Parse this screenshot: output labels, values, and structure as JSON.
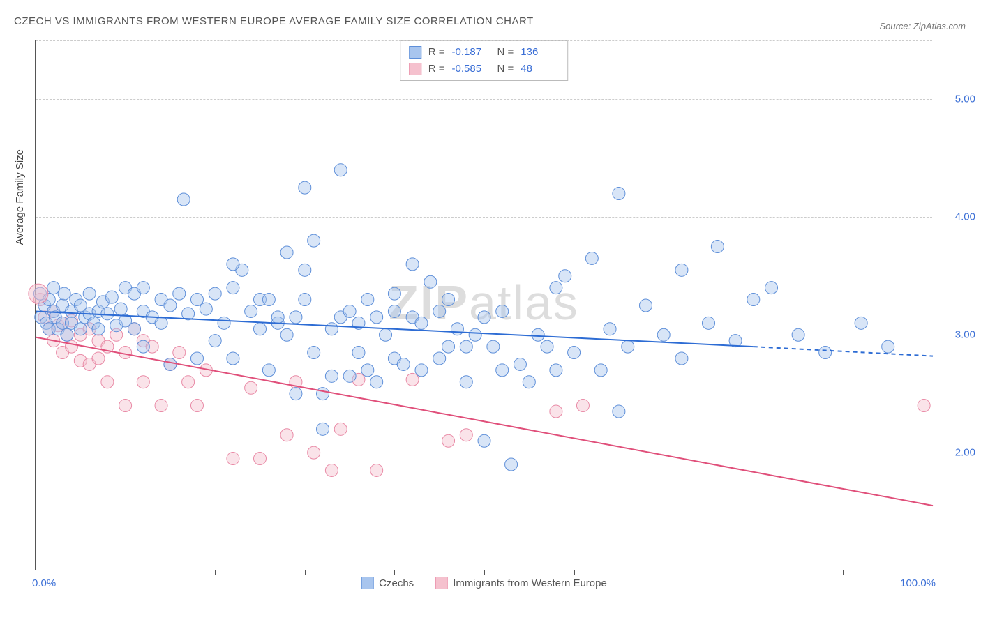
{
  "title": "CZECH VS IMMIGRANTS FROM WESTERN EUROPE AVERAGE FAMILY SIZE CORRELATION CHART",
  "source": "Source: ZipAtlas.com",
  "ylabel": "Average Family Size",
  "watermark_a": "ZIP",
  "watermark_b": "atlas",
  "chart": {
    "type": "scatter",
    "xlim": [
      0,
      100
    ],
    "ylim": [
      1.0,
      5.5
    ],
    "yticks": [
      2.0,
      3.0,
      4.0,
      5.0
    ],
    "ytick_labels": [
      "2.00",
      "3.00",
      "4.00",
      "5.00"
    ],
    "xticks": [
      10,
      20,
      30,
      40,
      50,
      60,
      70,
      80,
      90
    ],
    "xaxis_start": "0.0%",
    "xaxis_end": "100.0%",
    "background_color": "#ffffff",
    "grid_color": "#cccccc",
    "marker_radius": 9,
    "marker_opacity": 0.45,
    "series": [
      {
        "name": "Czechs",
        "label": "Czechs",
        "color_fill": "#a8c5ee",
        "color_stroke": "#5e8fd9",
        "R": "-0.187",
        "N": "136",
        "trend": {
          "x1": 0,
          "y1": 3.2,
          "x2": 80,
          "y2": 2.9,
          "dash_x2": 100,
          "dash_y2": 2.82,
          "color": "#2d6cd4",
          "width": 2
        },
        "points": [
          [
            0.5,
            3.35
          ],
          [
            0.6,
            3.15
          ],
          [
            1,
            3.25
          ],
          [
            1.2,
            3.1
          ],
          [
            1.5,
            3.3
          ],
          [
            1.5,
            3.05
          ],
          [
            2,
            3.2
          ],
          [
            2,
            3.4
          ],
          [
            2.2,
            3.15
          ],
          [
            2.5,
            3.05
          ],
          [
            3,
            3.25
          ],
          [
            3,
            3.1
          ],
          [
            3.2,
            3.35
          ],
          [
            3.5,
            3.0
          ],
          [
            4,
            3.2
          ],
          [
            4,
            3.1
          ],
          [
            4.5,
            3.3
          ],
          [
            5,
            3.05
          ],
          [
            5,
            3.25
          ],
          [
            5.5,
            3.15
          ],
          [
            6,
            3.18
          ],
          [
            6,
            3.35
          ],
          [
            6.5,
            3.1
          ],
          [
            7,
            3.2
          ],
          [
            7,
            3.05
          ],
          [
            7.5,
            3.28
          ],
          [
            8,
            3.18
          ],
          [
            8.5,
            3.32
          ],
          [
            9,
            3.08
          ],
          [
            9.5,
            3.22
          ],
          [
            10,
            3.4
          ],
          [
            10,
            3.12
          ],
          [
            11,
            3.35
          ],
          [
            11,
            3.05
          ],
          [
            12,
            3.2
          ],
          [
            12,
            3.4
          ],
          [
            13,
            3.15
          ],
          [
            14,
            3.3
          ],
          [
            14,
            3.1
          ],
          [
            15,
            3.25
          ],
          [
            15,
            2.75
          ],
          [
            16,
            3.35
          ],
          [
            16.5,
            4.15
          ],
          [
            17,
            3.18
          ],
          [
            18,
            3.3
          ],
          [
            18,
            2.8
          ],
          [
            19,
            3.22
          ],
          [
            20,
            3.35
          ],
          [
            20,
            2.95
          ],
          [
            21,
            3.1
          ],
          [
            22,
            3.4
          ],
          [
            22,
            2.8
          ],
          [
            23,
            3.55
          ],
          [
            24,
            3.2
          ],
          [
            25,
            3.05
          ],
          [
            25,
            3.3
          ],
          [
            26,
            2.7
          ],
          [
            27,
            3.1
          ],
          [
            27,
            3.15
          ],
          [
            28,
            3.7
          ],
          [
            28,
            3.0
          ],
          [
            29,
            3.15
          ],
          [
            29,
            2.5
          ],
          [
            30,
            3.3
          ],
          [
            30,
            3.55
          ],
          [
            30,
            4.25
          ],
          [
            31,
            2.85
          ],
          [
            31,
            3.8
          ],
          [
            32,
            2.5
          ],
          [
            32,
            2.2
          ],
          [
            33,
            2.65
          ],
          [
            33,
            3.05
          ],
          [
            34,
            3.15
          ],
          [
            34,
            4.4
          ],
          [
            35,
            3.2
          ],
          [
            35,
            2.65
          ],
          [
            36,
            3.1
          ],
          [
            36,
            2.85
          ],
          [
            37,
            3.3
          ],
          [
            37,
            2.7
          ],
          [
            38,
            3.15
          ],
          [
            38,
            2.6
          ],
          [
            39,
            3.0
          ],
          [
            40,
            2.8
          ],
          [
            40,
            3.2
          ],
          [
            41,
            2.75
          ],
          [
            42,
            3.15
          ],
          [
            42,
            3.6
          ],
          [
            43,
            2.7
          ],
          [
            43,
            3.1
          ],
          [
            44,
            3.45
          ],
          [
            45,
            3.2
          ],
          [
            45,
            2.8
          ],
          [
            46,
            2.9
          ],
          [
            46,
            3.3
          ],
          [
            47,
            3.05
          ],
          [
            48,
            2.6
          ],
          [
            48,
            2.9
          ],
          [
            49,
            3.0
          ],
          [
            50,
            3.15
          ],
          [
            50,
            2.1
          ],
          [
            51,
            2.9
          ],
          [
            52,
            2.7
          ],
          [
            52,
            3.2
          ],
          [
            53,
            1.9
          ],
          [
            54,
            2.75
          ],
          [
            55,
            2.6
          ],
          [
            56,
            3.0
          ],
          [
            57,
            2.9
          ],
          [
            58,
            2.7
          ],
          [
            58,
            3.4
          ],
          [
            59,
            3.5
          ],
          [
            60,
            2.85
          ],
          [
            62,
            3.65
          ],
          [
            63,
            2.7
          ],
          [
            64,
            3.05
          ],
          [
            65,
            4.2
          ],
          [
            65,
            2.35
          ],
          [
            66,
            2.9
          ],
          [
            68,
            3.25
          ],
          [
            70,
            3.0
          ],
          [
            72,
            3.55
          ],
          [
            72,
            2.8
          ],
          [
            75,
            3.1
          ],
          [
            76,
            3.75
          ],
          [
            78,
            2.95
          ],
          [
            80,
            3.3
          ],
          [
            82,
            3.4
          ],
          [
            85,
            3.0
          ],
          [
            88,
            2.85
          ],
          [
            92,
            3.1
          ],
          [
            95,
            2.9
          ],
          [
            12,
            2.9
          ],
          [
            22,
            3.6
          ],
          [
            26,
            3.3
          ],
          [
            40,
            3.35
          ]
        ]
      },
      {
        "name": "Immigrants",
        "label": "Immigrants from Western Europe",
        "color_fill": "#f5c1ce",
        "color_stroke": "#e98aa6",
        "R": "-0.585",
        "N": "48",
        "trend": {
          "x1": 0,
          "y1": 2.98,
          "x2": 100,
          "y2": 1.55,
          "color": "#e04f7a",
          "width": 2
        },
        "points": [
          [
            0.5,
            3.3
          ],
          [
            1,
            3.15
          ],
          [
            1.5,
            3.05
          ],
          [
            2,
            3.2
          ],
          [
            2,
            2.95
          ],
          [
            2.5,
            3.08
          ],
          [
            3,
            3.1
          ],
          [
            3,
            2.85
          ],
          [
            3.5,
            3.0
          ],
          [
            4,
            3.12
          ],
          [
            4,
            2.9
          ],
          [
            5,
            3.0
          ],
          [
            5,
            2.78
          ],
          [
            6,
            3.05
          ],
          [
            6,
            2.75
          ],
          [
            7,
            2.95
          ],
          [
            7,
            2.8
          ],
          [
            8,
            2.9
          ],
          [
            8,
            2.6
          ],
          [
            9,
            3.0
          ],
          [
            10,
            2.85
          ],
          [
            10,
            2.4
          ],
          [
            11,
            3.05
          ],
          [
            12,
            2.95
          ],
          [
            12,
            2.6
          ],
          [
            13,
            2.9
          ],
          [
            14,
            2.4
          ],
          [
            15,
            2.75
          ],
          [
            16,
            2.85
          ],
          [
            17,
            2.6
          ],
          [
            18,
            2.4
          ],
          [
            19,
            2.7
          ],
          [
            22,
            1.95
          ],
          [
            24,
            2.55
          ],
          [
            25,
            1.95
          ],
          [
            28,
            2.15
          ],
          [
            29,
            2.6
          ],
          [
            31,
            2.0
          ],
          [
            33,
            1.85
          ],
          [
            34,
            2.2
          ],
          [
            36,
            2.62
          ],
          [
            38,
            1.85
          ],
          [
            42,
            2.62
          ],
          [
            46,
            2.1
          ],
          [
            48,
            2.15
          ],
          [
            58,
            2.35
          ],
          [
            61,
            2.4
          ],
          [
            99,
            2.4
          ]
        ]
      }
    ]
  },
  "stats_labels": {
    "R": "R =",
    "N": "N ="
  },
  "legend": {
    "s1": "Czechs",
    "s2": "Immigrants from Western Europe"
  }
}
